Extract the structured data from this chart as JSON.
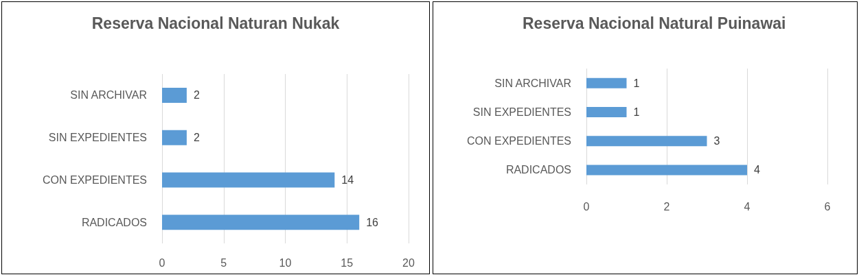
{
  "chart_data": [
    {
      "type": "bar",
      "orientation": "horizontal",
      "title": "Reserva Nacional Naturan Nukak",
      "categories": [
        "SIN ARCHIVAR",
        "SIN EXPEDIENTES",
        "CON EXPEDIENTES",
        "RADICADOS"
      ],
      "values": [
        2,
        2,
        14,
        16
      ],
      "color": "#5b9bd5",
      "xlim": [
        0,
        20
      ],
      "xticks": [
        0,
        5,
        10,
        15,
        20
      ],
      "grid": "x",
      "data_labels": true
    },
    {
      "type": "bar",
      "orientation": "horizontal",
      "title": "Reserva Nacional Natural Puinawai",
      "categories": [
        "SIN ARCHIVAR",
        "SIN EXPEDIENTES",
        "CON EXPEDIENTES",
        "RADICADOS"
      ],
      "values": [
        1,
        1,
        3,
        4
      ],
      "color": "#5b9bd5",
      "xlim": [
        0,
        6
      ],
      "xticks": [
        0,
        2,
        4,
        6
      ],
      "grid": "x",
      "data_labels": true
    }
  ]
}
